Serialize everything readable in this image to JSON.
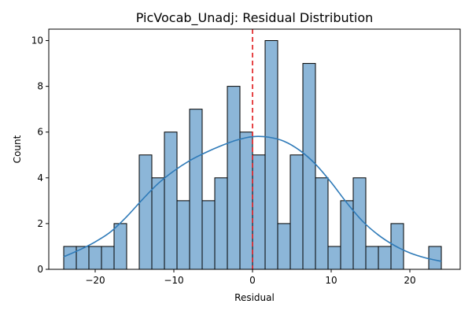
{
  "chart_data": {
    "type": "bar",
    "title": "PicVocab_Unadj: Residual Distribution",
    "xlabel": "Residual",
    "ylabel": "Count",
    "xlim": [
      -25.9,
      26.4
    ],
    "ylim": [
      0,
      10.5
    ],
    "xticks": [
      -20,
      -10,
      0,
      10,
      20
    ],
    "xtick_labels": [
      "−20",
      "−10",
      "0",
      "10",
      "20"
    ],
    "yticks": [
      0,
      2,
      4,
      6,
      8,
      10
    ],
    "ytick_labels": [
      "0",
      "2",
      "4",
      "6",
      "8",
      "10"
    ],
    "grid": false,
    "legend": "none",
    "bin_edges": [
      -24.0,
      -22.4,
      -20.8,
      -19.2,
      -17.6,
      -16.0,
      -14.4,
      -12.8,
      -11.2,
      -9.6,
      -8.0,
      -6.4,
      -4.8,
      -3.2,
      -1.6,
      0.0,
      1.6,
      3.2,
      4.8,
      6.4,
      8.0,
      9.6,
      11.2,
      12.8,
      14.4,
      16.0,
      17.6,
      19.2,
      20.8,
      22.4,
      24.0
    ],
    "counts": [
      1,
      1,
      1,
      1,
      2,
      0,
      5,
      4,
      6,
      3,
      7,
      3,
      4,
      8,
      6,
      5,
      10,
      2,
      5,
      9,
      4,
      1,
      3,
      4,
      1,
      1,
      2,
      0,
      0,
      1
    ],
    "kde": {
      "x": [
        -24,
        -22,
        -20,
        -18,
        -16,
        -14,
        -12,
        -10,
        -8,
        -6,
        -4,
        -2,
        0,
        2,
        4,
        6,
        8,
        10,
        12,
        14,
        16,
        18,
        20,
        22,
        24
      ],
      "y": [
        0.55,
        0.85,
        1.2,
        1.65,
        2.3,
        3.05,
        3.75,
        4.3,
        4.75,
        5.1,
        5.4,
        5.65,
        5.8,
        5.78,
        5.6,
        5.2,
        4.6,
        3.8,
        2.9,
        2.1,
        1.5,
        1.05,
        0.72,
        0.5,
        0.35
      ]
    },
    "vline": {
      "x": 0,
      "style": "dashed"
    },
    "colors": {
      "bar_fill": "#8cb6d8",
      "bar_edge": "#000000",
      "kde_line": "#2e7ab8",
      "vline": "#e0191b"
    }
  }
}
